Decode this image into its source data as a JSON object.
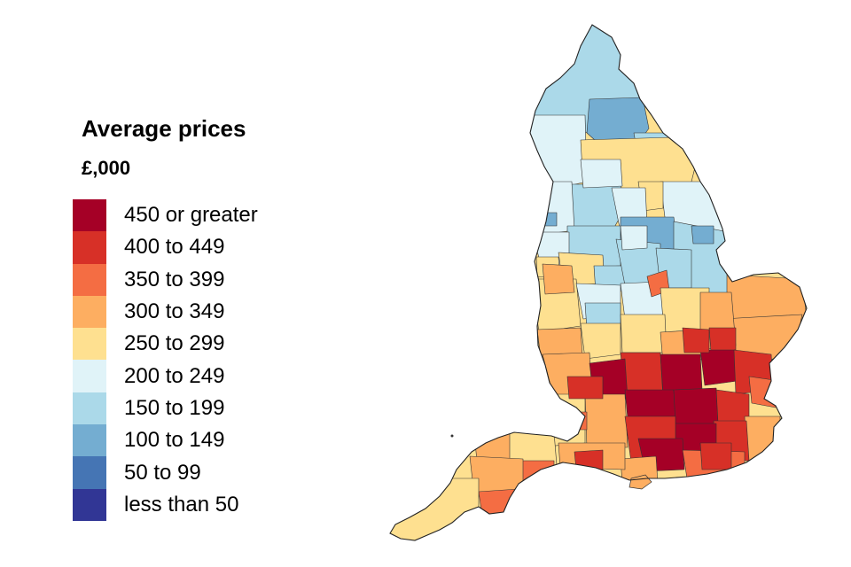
{
  "legend": {
    "title": "Average prices",
    "unit": "£,000",
    "items": [
      {
        "label": "450 or greater",
        "color": "#a50026"
      },
      {
        "label": "400 to 449",
        "color": "#d73027"
      },
      {
        "label": "350 to 399",
        "color": "#f46d43"
      },
      {
        "label": "300 to 349",
        "color": "#fdae61"
      },
      {
        "label": "250 to 299",
        "color": "#fee090"
      },
      {
        "label": "200 to 249",
        "color": "#e0f3f8"
      },
      {
        "label": "150 to 199",
        "color": "#abd9e9"
      },
      {
        "label": "100 to 149",
        "color": "#74add1"
      },
      {
        "label": "50 to 99",
        "color": "#4575b4"
      },
      {
        "label": "less than 50",
        "color": "#313695"
      }
    ]
  },
  "map": {
    "region": "England",
    "subject": "Average house prices by local authority",
    "border_color": "#333333"
  }
}
